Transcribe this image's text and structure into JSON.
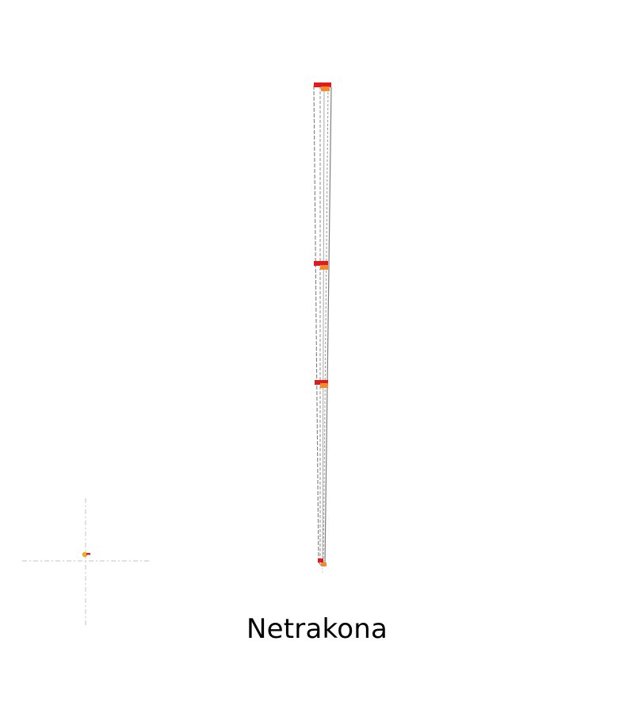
{
  "map": {
    "title": "Netrakona",
    "colors": {
      "background": "#ffffff",
      "route_line": "#7f7f7f",
      "route_line_light": "#a9a9a9",
      "marker_primary": "#e31a1c",
      "marker_secondary": "#f28a2e",
      "locator_marker": "#f5a623",
      "crosshair": "#cfcfcf"
    },
    "features": {
      "route_markers": 4,
      "locator_inset": "crosshair-with-point"
    }
  }
}
